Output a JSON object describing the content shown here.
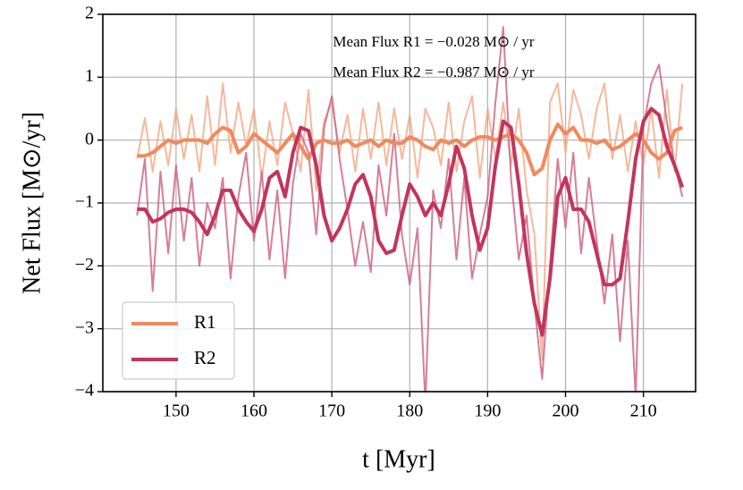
{
  "chart_data": {
    "type": "line",
    "xlabel": "t [Myr]",
    "ylabel": "Net Flux [M⊙/yr]",
    "annotations": [
      "Mean Flux R1 = −0.028 M⊙ / yr",
      "Mean Flux R2 = −0.987 M⊙ / yr"
    ],
    "x": [
      145,
      146,
      147,
      148,
      149,
      150,
      151,
      152,
      153,
      154,
      155,
      156,
      157,
      158,
      159,
      160,
      161,
      162,
      163,
      164,
      165,
      166,
      167,
      168,
      169,
      170,
      171,
      172,
      173,
      174,
      175,
      176,
      177,
      178,
      179,
      180,
      181,
      182,
      183,
      184,
      185,
      186,
      187,
      188,
      189,
      190,
      191,
      192,
      193,
      194,
      195,
      196,
      197,
      198,
      199,
      200,
      201,
      202,
      203,
      204,
      205,
      206,
      207,
      208,
      209,
      210,
      211,
      212,
      213,
      214,
      215
    ],
    "series": [
      {
        "color": "#f5ab8a",
        "values": [
          -0.3,
          0.35,
          -0.5,
          0.3,
          -0.4,
          0.5,
          -0.3,
          0.4,
          -0.5,
          0.7,
          -0.4,
          0.9,
          -0.2,
          0.6,
          -0.1,
          0.5,
          -0.6,
          0.3,
          -0.4,
          0.6,
          0.1,
          -0.5,
          0.8,
          -0.8,
          0.3,
          0.6,
          -0.2,
          0.4,
          -0.5,
          0.5,
          -0.3,
          0.6,
          -0.4,
          0.5,
          -0.3,
          0.4,
          -0.6,
          0.5,
          0.2,
          -0.4,
          0.6,
          -0.5,
          0.3,
          0.7,
          -0.6,
          0.5,
          -0.3,
          0.6,
          -0.4,
          0.5,
          -0.8,
          -1.5,
          -3.5,
          0.6,
          0.9,
          -0.2,
          0.8,
          0.4,
          -0.3,
          0.5,
          0.9,
          -0.3,
          0.4,
          -0.5,
          0.3,
          -0.4,
          0.5,
          -0.6,
          0.8,
          -0.5,
          0.9
        ]
      },
      {
        "color": "#cf6785",
        "values": [
          -1.2,
          -0.3,
          -2.4,
          -0.5,
          -1.8,
          -0.4,
          -1.6,
          -0.6,
          -2.0,
          -1.0,
          -1.4,
          -0.6,
          -2.2,
          -0.9,
          -0.2,
          -1.6,
          -0.5,
          -1.9,
          -0.8,
          -2.2,
          -0.7,
          0.1,
          -0.2,
          -1.5,
          0.2,
          0.7,
          -0.3,
          -1.1,
          -2.0,
          -1.3,
          -2.1,
          -0.4,
          -1.2,
          0.1,
          -1.5,
          -2.3,
          -1.4,
          -4.2,
          -0.8,
          -1.4,
          -0.3,
          -1.9,
          -0.6,
          -2.2,
          -1.5,
          -0.9,
          0.6,
          1.8,
          -0.6,
          -1.9,
          -1.2,
          -2.6,
          -3.8,
          -2.0,
          -0.3,
          -1.4,
          -0.2,
          -1.8,
          -0.6,
          -1.6,
          -2.6,
          -1.5,
          -3.2,
          -1.6,
          -4.1,
          0.2,
          0.9,
          1.2,
          0.3,
          -0.4,
          -0.9
        ]
      },
      {
        "name": "R1",
        "color": "#f08a5d",
        "values": [
          -0.25,
          -0.25,
          -0.2,
          -0.1,
          0,
          -0.05,
          0,
          0,
          0,
          -0.05,
          0.1,
          0.2,
          0.15,
          -0.2,
          -0.1,
          0.1,
          0,
          -0.1,
          -0.2,
          -0.05,
          0.1,
          -0.1,
          -0.3,
          -0.05,
          0,
          -0.05,
          -0.05,
          0,
          -0.1,
          -0.05,
          0,
          -0.1,
          0,
          -0.05,
          -0.05,
          0.05,
          0,
          -0.1,
          -0.15,
          0,
          -0.05,
          0,
          -0.1,
          0,
          0.05,
          0.05,
          0,
          0.05,
          0.1,
          0,
          -0.2,
          -0.55,
          -0.45,
          0,
          0.25,
          0.1,
          0.2,
          0,
          0,
          -0.05,
          0,
          -0.15,
          -0.1,
          0,
          0.1,
          0,
          -0.2,
          -0.3,
          -0.2,
          0.15,
          0.2
        ]
      },
      {
        "name": "R2",
        "color": "#c2355c",
        "values": [
          -1.1,
          -1.1,
          -1.3,
          -1.25,
          -1.15,
          -1.1,
          -1.1,
          -1.15,
          -1.3,
          -1.5,
          -1.2,
          -0.8,
          -0.8,
          -1.1,
          -1.3,
          -1.45,
          -1.1,
          -0.6,
          -0.5,
          -0.9,
          -0.2,
          0.2,
          0.15,
          -0.4,
          -1.2,
          -1.6,
          -1.4,
          -1.1,
          -0.7,
          -0.55,
          -0.9,
          -1.6,
          -1.8,
          -1.75,
          -1.2,
          -0.7,
          -0.9,
          -1.2,
          -1.0,
          -1.2,
          -0.7,
          -0.1,
          -0.45,
          -1.2,
          -1.75,
          -1.4,
          -0.4,
          0.3,
          0.2,
          -0.7,
          -1.8,
          -2.6,
          -3.1,
          -2.2,
          -0.9,
          -0.6,
          -1.1,
          -1.1,
          -1.3,
          -1.8,
          -2.3,
          -2.3,
          -2.2,
          -1.3,
          -0.3,
          0.3,
          0.5,
          0.4,
          -0.1,
          -0.4,
          -0.75
        ]
      }
    ],
    "xlim": [
      140.6,
      216.7
    ],
    "xticks": [
      150,
      160,
      170,
      180,
      190,
      200,
      210
    ],
    "ylim": [
      -4,
      2
    ],
    "yticks": [
      {
        "value": -4,
        "label": "−4"
      },
      {
        "value": -3,
        "label": "−3"
      },
      {
        "value": -2,
        "label": "−2"
      },
      {
        "value": -1,
        "label": "−1"
      },
      0,
      1,
      2
    ],
    "grid": true,
    "legend": "lower left"
  }
}
